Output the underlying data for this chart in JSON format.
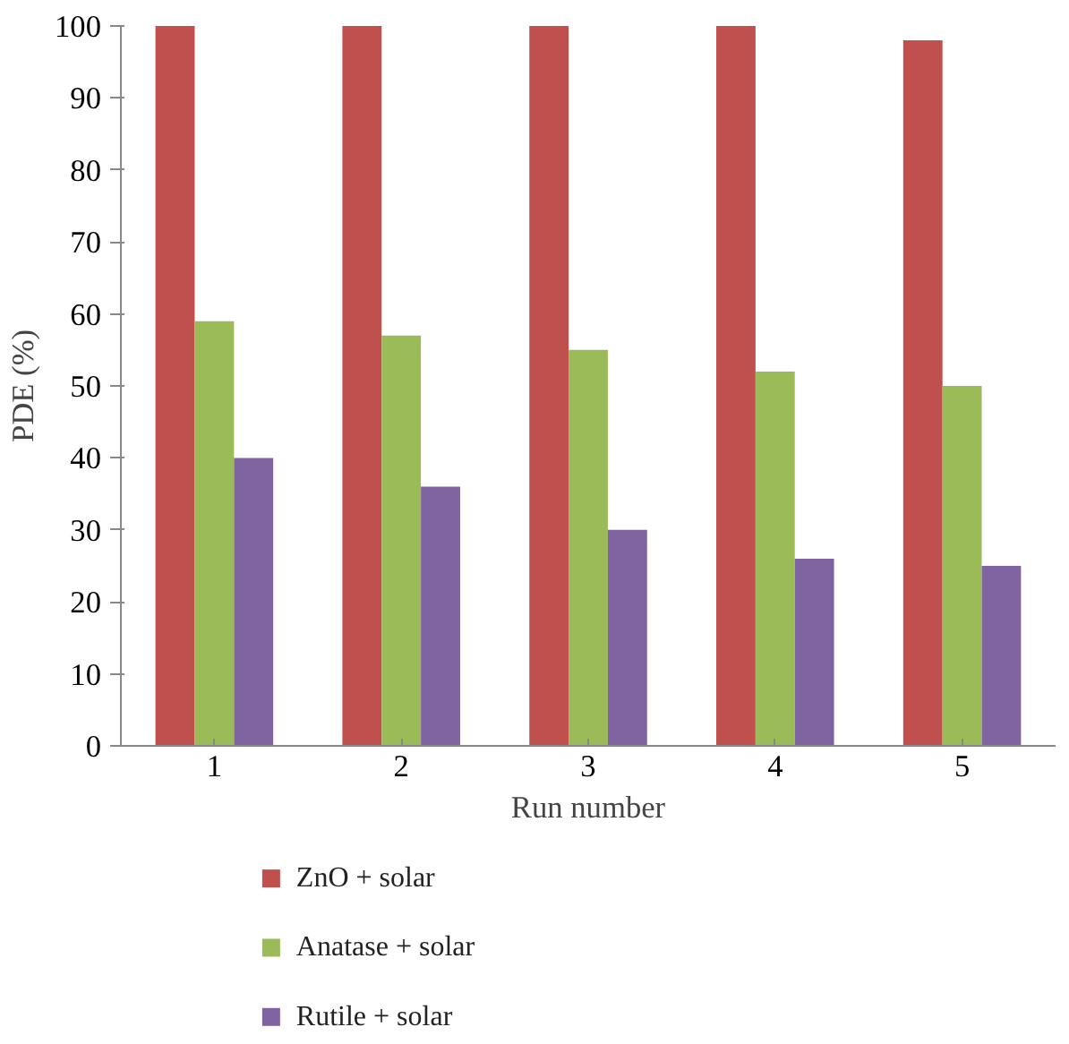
{
  "chart_data": {
    "type": "bar",
    "xlabel": "Run number",
    "ylabel": "PDE (%)",
    "categories": [
      "1",
      "2",
      "3",
      "4",
      "5"
    ],
    "series": [
      {
        "name": "ZnO + solar",
        "color": "#c0504d",
        "values": [
          100,
          100,
          100,
          100,
          98
        ]
      },
      {
        "name": "Anatase + solar",
        "color": "#9bbb59",
        "values": [
          59,
          57,
          55,
          52,
          50
        ]
      },
      {
        "name": "Rutile + solar",
        "color": "#8064a2",
        "values": [
          40,
          36,
          30,
          26,
          25
        ]
      }
    ],
    "ylim": [
      0,
      100
    ],
    "yticks": [
      0,
      10,
      20,
      30,
      40,
      50,
      60,
      70,
      80,
      90,
      100
    ],
    "grid": false,
    "legend": "bottom"
  }
}
